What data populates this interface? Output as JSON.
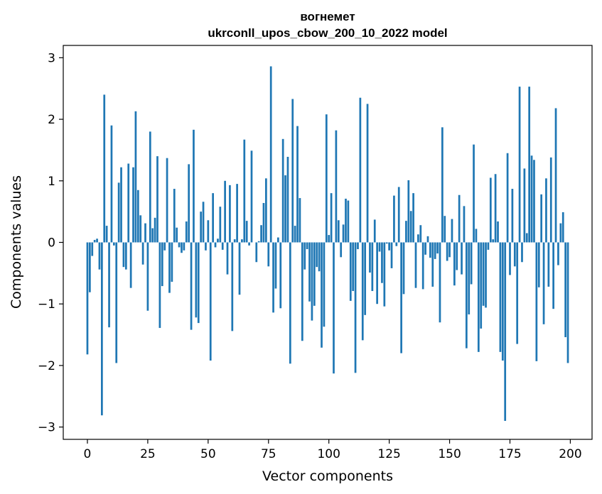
{
  "chart_data": {
    "type": "bar",
    "title_line1": "вогнемет",
    "title_line2": "ukrconll_upos_cbow_200_10_2022 model",
    "xlabel": "Vector components",
    "ylabel": "Components values",
    "xlim": [
      -10,
      209
    ],
    "ylim": [
      -3.2,
      3.2
    ],
    "xticks": [
      0,
      25,
      50,
      75,
      100,
      125,
      150,
      175,
      200
    ],
    "yticks": [
      -3,
      -2,
      -1,
      0,
      1,
      2,
      3
    ],
    "ytick_labels": [
      "−3",
      "−2",
      "−1",
      "0",
      "1",
      "2",
      "3"
    ],
    "grid": false,
    "color": "#1f77b4",
    "x": [
      0,
      1,
      2,
      3,
      4,
      5,
      6,
      7,
      8,
      9,
      10,
      11,
      12,
      13,
      14,
      15,
      16,
      17,
      18,
      19,
      20,
      21,
      22,
      23,
      24,
      25,
      26,
      27,
      28,
      29,
      30,
      31,
      32,
      33,
      34,
      35,
      36,
      37,
      38,
      39,
      40,
      41,
      42,
      43,
      44,
      45,
      46,
      47,
      48,
      49,
      50,
      51,
      52,
      53,
      54,
      55,
      56,
      57,
      58,
      59,
      60,
      61,
      62,
      63,
      64,
      65,
      66,
      67,
      68,
      69,
      70,
      71,
      72,
      73,
      74,
      75,
      76,
      77,
      78,
      79,
      80,
      81,
      82,
      83,
      84,
      85,
      86,
      87,
      88,
      89,
      90,
      91,
      92,
      93,
      94,
      95,
      96,
      97,
      98,
      99,
      100,
      101,
      102,
      103,
      104,
      105,
      106,
      107,
      108,
      109,
      110,
      111,
      112,
      113,
      114,
      115,
      116,
      117,
      118,
      119,
      120,
      121,
      122,
      123,
      124,
      125,
      126,
      127,
      128,
      129,
      130,
      131,
      132,
      133,
      134,
      135,
      136,
      137,
      138,
      139,
      140,
      141,
      142,
      143,
      144,
      145,
      146,
      147,
      148,
      149,
      150,
      151,
      152,
      153,
      154,
      155,
      156,
      157,
      158,
      159,
      160,
      161,
      162,
      163,
      164,
      165,
      166,
      167,
      168,
      169,
      170,
      171,
      172,
      173,
      174,
      175,
      176,
      177,
      178,
      179,
      180,
      181,
      182,
      183,
      184,
      185,
      186,
      187,
      188,
      189,
      190,
      191,
      192,
      193,
      194,
      195,
      196,
      197,
      198,
      199
    ],
    "values": [
      -1.82,
      -0.81,
      -0.22,
      0.04,
      0.06,
      -0.44,
      -2.81,
      2.4,
      0.27,
      -1.38,
      1.9,
      -0.05,
      -1.96,
      0.97,
      1.22,
      -0.4,
      -0.44,
      1.28,
      -0.74,
      1.22,
      2.13,
      0.85,
      0.44,
      -0.36,
      0.31,
      -1.11,
      1.8,
      0.23,
      0.4,
      1.4,
      -1.39,
      -0.71,
      -0.13,
      1.37,
      -0.82,
      -0.64,
      0.87,
      0.24,
      -0.08,
      -0.17,
      -0.13,
      0.34,
      1.27,
      -1.42,
      1.83,
      -1.22,
      -1.31,
      0.5,
      0.66,
      -0.13,
      0.36,
      -1.92,
      0.8,
      -0.08,
      0.06,
      0.58,
      -0.12,
      1.0,
      -0.52,
      0.93,
      -1.44,
      0.05,
      0.95,
      -0.85,
      0.05,
      1.67,
      0.35,
      -0.05,
      1.49,
      0.0,
      -0.32,
      0.02,
      0.28,
      0.64,
      1.04,
      -0.39,
      2.86,
      -1.14,
      -0.75,
      0.08,
      -1.07,
      1.68,
      1.09,
      1.39,
      -1.97,
      2.33,
      0.27,
      1.89,
      0.72,
      -1.6,
      -0.44,
      -0.11,
      -0.96,
      -1.27,
      -1.03,
      -0.4,
      -0.47,
      -1.71,
      -1.37,
      2.08,
      0.12,
      0.8,
      -2.13,
      1.82,
      0.36,
      -0.24,
      0.29,
      0.71,
      0.68,
      -0.95,
      -0.79,
      -2.12,
      -0.11,
      2.35,
      -1.59,
      -1.18,
      2.25,
      -0.49,
      -0.79,
      0.37,
      -1.0,
      -0.15,
      -0.66,
      -1.04,
      -0.02,
      -0.13,
      -0.42,
      0.76,
      -0.06,
      0.9,
      -1.8,
      -0.84,
      0.35,
      1.01,
      0.51,
      0.8,
      -0.74,
      0.13,
      0.28,
      -0.76,
      -0.2,
      0.1,
      -0.25,
      -0.72,
      -0.27,
      -0.18,
      -1.3,
      1.87,
      0.43,
      -0.3,
      -0.24,
      0.38,
      -0.7,
      -0.45,
      0.77,
      -0.52,
      0.59,
      -1.72,
      -1.17,
      -0.68,
      1.59,
      0.22,
      -1.78,
      -1.4,
      -1.03,
      -1.06,
      -0.12,
      1.05,
      0.05,
      1.11,
      0.34,
      -1.78,
      -1.92,
      -2.9,
      1.45,
      -0.53,
      0.87,
      -0.39,
      -1.65,
      2.53,
      -0.32,
      1.2,
      0.15,
      2.53,
      1.41,
      1.34,
      -1.93,
      -0.73,
      0.78,
      -1.33,
      1.04,
      -0.72,
      1.38,
      -1.08,
      2.18,
      -0.37,
      0.31,
      0.49,
      -1.54,
      -1.96
    ]
  }
}
